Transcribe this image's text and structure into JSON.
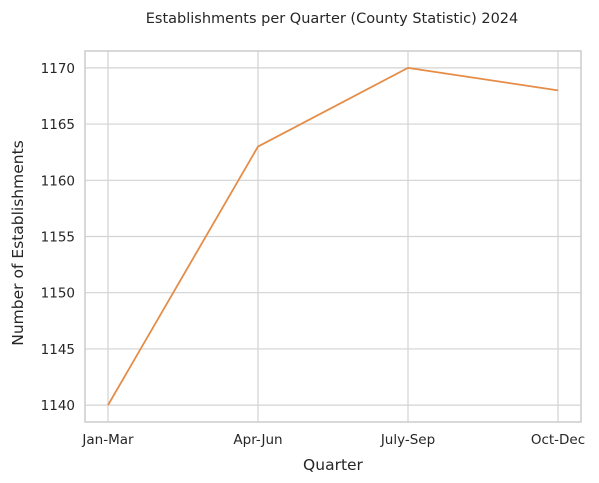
{
  "chart_data": {
    "type": "line",
    "title": "Establishments per Quarter (County Statistic) 2024",
    "xlabel": "Quarter",
    "ylabel": "Number of Establishments",
    "categories": [
      "Jan-Mar",
      "Apr-Jun",
      "July-Sep",
      "Oct-Dec"
    ],
    "series": [
      {
        "values": [
          1140,
          1163,
          1170,
          1168
        ]
      }
    ],
    "ylim": [
      1138.5,
      1171.5
    ],
    "yticks": [
      "1140",
      "1145",
      "1150",
      "1155",
      "1160",
      "1165",
      "1170"
    ],
    "grid": true,
    "colors": {
      "line": "#e58c47",
      "grid": "#d3d3d3",
      "spine": "#cccccc"
    }
  }
}
